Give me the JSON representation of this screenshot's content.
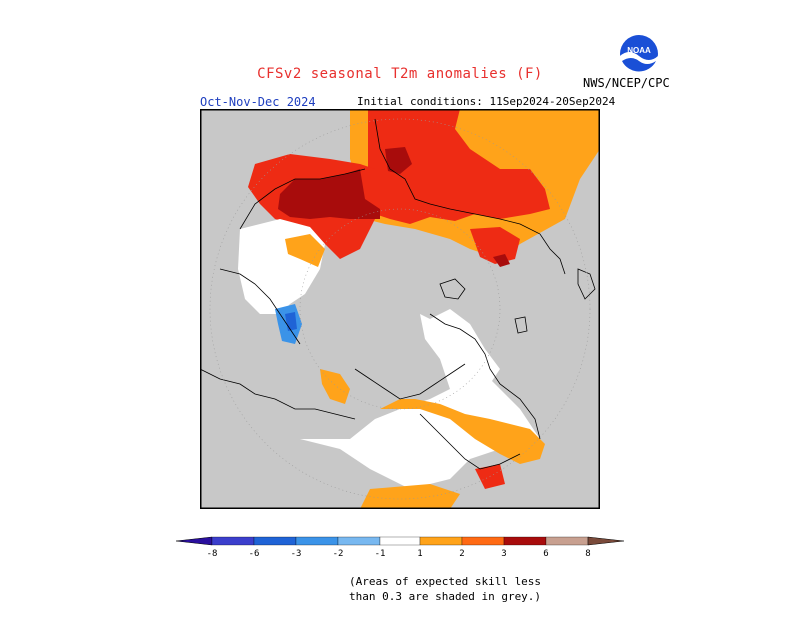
{
  "header": {
    "title": "CFSv2 seasonal T2m anomalies (F)",
    "agency": "NWS/NCEP/CPC",
    "season": "Oct-Nov-Dec 2024",
    "initial_conditions": "Initial conditions: 11Sep2024-20Sep2024"
  },
  "logo": {
    "text": "NOAA"
  },
  "colorbar": {
    "labels": [
      "-8",
      "-6",
      "-3",
      "-2",
      "-1",
      "1",
      "2",
      "3",
      "6",
      "8"
    ],
    "colors": {
      "lt_neg8": "#2a0f9e",
      "neg8_neg6": "#3b3ecc",
      "neg6_neg3": "#1f63d6",
      "neg3_neg2": "#3b93e8",
      "neg2_neg1": "#78b8f0",
      "neg1_1": "#ffffff",
      "1_2": "#ffa31a",
      "2_3": "#ff6a14",
      "3_6": "#ee2b14",
      "6_8": "#a80c0c",
      "8_gt": "#c8a090",
      "gt8": "#7a4a3a"
    }
  },
  "map": {
    "colors": {
      "grey": "#c8c8c8",
      "white": "#ffffff",
      "orange": "#ffa31a",
      "dark_orange": "#ff6a14",
      "red": "#ee2b14",
      "dark_red": "#a80c0c",
      "blue": "#3b93e8",
      "coast": "#000000"
    }
  },
  "note": {
    "line1": "(Areas of expected skill less",
    "line2": "than 0.3 are shaded in grey.)"
  }
}
